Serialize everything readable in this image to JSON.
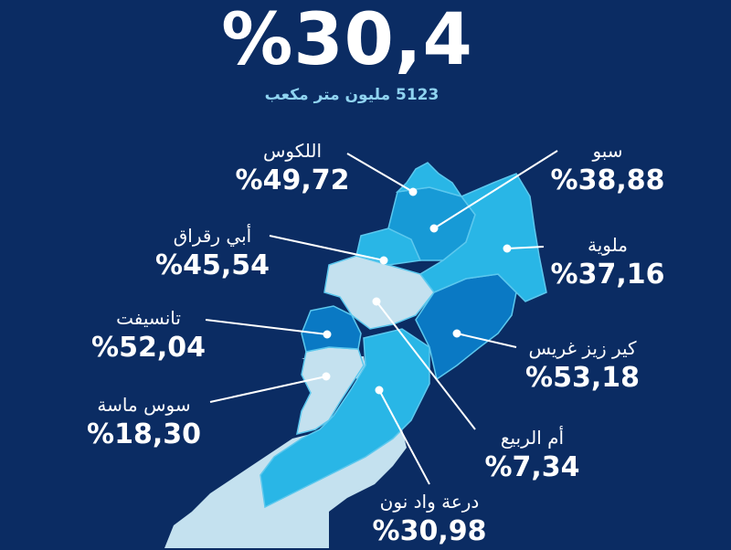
{
  "headline": {
    "value": "%30,4",
    "volume": "5123 مليون متر مكعب"
  },
  "colors": {
    "background": "#0b2c63",
    "pale": "#c4e1ef",
    "light": "#29b6e6",
    "mid": "#179ad6",
    "dark": "#0a79c4",
    "border": "#5cc8ee",
    "leader": "#ffffff"
  },
  "regions": [
    {
      "name": "اللكوس",
      "value": "%49,72"
    },
    {
      "name": "سبو",
      "value": "%38,88"
    },
    {
      "name": "أبي رقراق",
      "value": "%45,54"
    },
    {
      "name": "ملوية",
      "value": "%37,16"
    },
    {
      "name": "تانسيفت",
      "value": "%52,04"
    },
    {
      "name": "كير زيز غريس",
      "value": "%53,18"
    },
    {
      "name": "سوس ماسة",
      "value": "%18,30"
    },
    {
      "name": "أم الربيع",
      "value": "%7,34"
    },
    {
      "name": "درعة واد نون",
      "value": "%30,98"
    }
  ]
}
